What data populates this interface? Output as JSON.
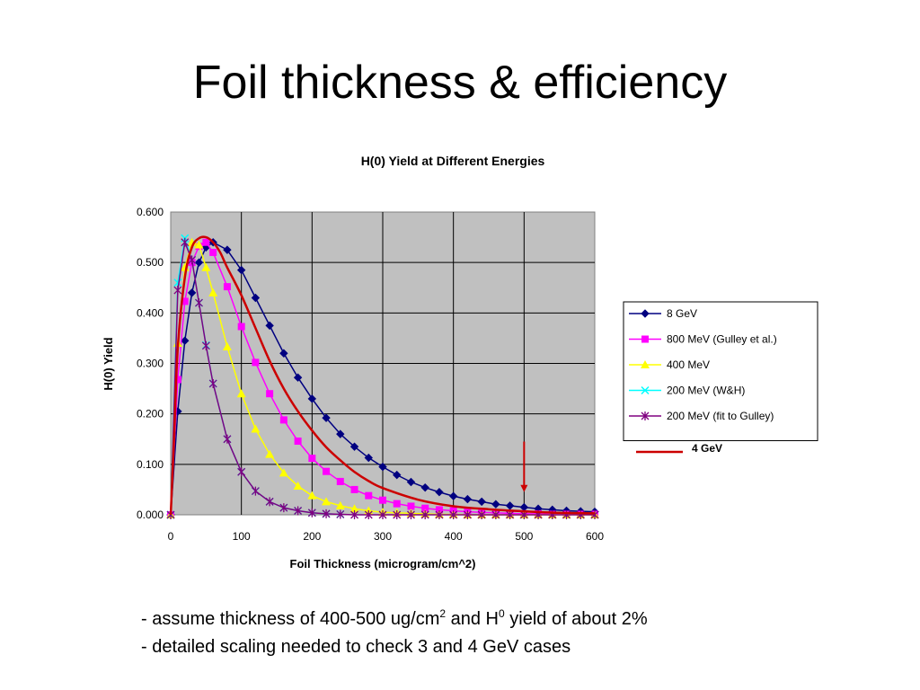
{
  "slide": {
    "title": "Foil thickness & efficiency",
    "bullet1": {
      "prefix": "- assume thickness of 400-500 ug/cm",
      "sup1": "2",
      "middle": " and H",
      "sup2": "0",
      "suffix": " yield of about 2%"
    },
    "bullet2": "- detailed scaling needed to check 3 and 4 GeV cases"
  },
  "chart_data": {
    "type": "line",
    "title": "H(0) Yield at Different Energies",
    "xlabel": "Foil Thickness (microgram/cm^2)",
    "ylabel": "H(0) Yield",
    "xlim": [
      0,
      600
    ],
    "ylim": [
      0,
      0.6
    ],
    "xticks": [
      "0",
      "100",
      "200",
      "300",
      "400",
      "500",
      "600"
    ],
    "yticks": [
      "0.000",
      "0.100",
      "0.200",
      "0.300",
      "0.400",
      "0.500",
      "0.600"
    ],
    "grid": true,
    "plot_background": "#c0c0c0",
    "legend_position": "right",
    "series": [
      {
        "name": "8 GeV",
        "color": "#000080",
        "marker": "diamond",
        "x": [
          0,
          10,
          20,
          30,
          40,
          50,
          60,
          80,
          100,
          120,
          140,
          160,
          180,
          200,
          220,
          240,
          260,
          280,
          300,
          320,
          340,
          360,
          380,
          400,
          420,
          440,
          460,
          480,
          500,
          520,
          540,
          560,
          580,
          600
        ],
        "y": [
          0,
          0.205,
          0.345,
          0.44,
          0.5,
          0.53,
          0.54,
          0.525,
          0.485,
          0.43,
          0.375,
          0.32,
          0.272,
          0.23,
          0.192,
          0.16,
          0.135,
          0.113,
          0.095,
          0.079,
          0.065,
          0.054,
          0.045,
          0.037,
          0.031,
          0.026,
          0.021,
          0.018,
          0.015,
          0.012,
          0.01,
          0.008,
          0.007,
          0.006
        ]
      },
      {
        "name": "800 MeV (Gulley et al.)",
        "color": "#ff00ff",
        "marker": "square",
        "x": [
          0,
          10,
          20,
          30,
          40,
          50,
          60,
          80,
          100,
          120,
          140,
          160,
          180,
          200,
          220,
          240,
          260,
          280,
          300,
          320,
          340,
          360,
          380,
          400,
          420,
          440,
          460,
          480,
          500,
          520,
          540,
          560,
          580,
          600
        ],
        "y": [
          0,
          0.268,
          0.423,
          0.5,
          0.532,
          0.54,
          0.52,
          0.452,
          0.373,
          0.302,
          0.24,
          0.188,
          0.146,
          0.112,
          0.086,
          0.066,
          0.05,
          0.038,
          0.029,
          0.022,
          0.017,
          0.013,
          0.01,
          0.008,
          0.006,
          0.005,
          0.004,
          0.003,
          0.002,
          0.002,
          0.001,
          0.001,
          0.001,
          0.001
        ]
      },
      {
        "name": "400 MeV",
        "color": "#ffff00",
        "marker": "triangle",
        "x": [
          0,
          10,
          20,
          30,
          40,
          50,
          60,
          80,
          100,
          120,
          140,
          160,
          180,
          200,
          220,
          240,
          260,
          280,
          300,
          320,
          340,
          360,
          380,
          400,
          420,
          440,
          460,
          480,
          500,
          520,
          540,
          560,
          580,
          600
        ],
        "y": [
          0,
          0.34,
          0.49,
          0.54,
          0.535,
          0.49,
          0.44,
          0.333,
          0.24,
          0.17,
          0.12,
          0.083,
          0.057,
          0.038,
          0.026,
          0.018,
          0.012,
          0.008,
          0.005,
          0.004,
          0.003,
          0.002,
          0.001,
          0.001,
          0,
          0,
          0,
          0,
          0,
          0,
          0,
          0,
          0,
          0
        ]
      },
      {
        "name": "200 MeV (W&H)",
        "color": "#00ffff",
        "marker": "x",
        "x": [
          0,
          10,
          20,
          30,
          40,
          50,
          60,
          80,
          100,
          120,
          140,
          160,
          180,
          200,
          220,
          240
        ],
        "y": [
          0,
          0.46,
          0.548,
          0.505,
          0.42,
          0.336,
          0.26,
          0.15,
          0.085,
          0.047,
          0.026,
          0.014,
          0.008,
          0.004,
          0.002,
          0.001
        ]
      },
      {
        "name": "200 MeV (fit to Gulley)",
        "color": "#800080",
        "marker": "star",
        "x": [
          0,
          10,
          20,
          30,
          40,
          50,
          60,
          80,
          100,
          120,
          140,
          160,
          180,
          200,
          220,
          240,
          260,
          280,
          300,
          320,
          340,
          360,
          380,
          400,
          420,
          440,
          460,
          480,
          500,
          520,
          540,
          560,
          580,
          600
        ],
        "y": [
          0,
          0.445,
          0.54,
          0.505,
          0.42,
          0.335,
          0.26,
          0.15,
          0.085,
          0.047,
          0.026,
          0.014,
          0.008,
          0.004,
          0.002,
          0.001,
          0,
          0,
          0,
          0,
          0,
          0,
          0,
          0,
          0,
          0,
          0,
          0,
          0,
          0,
          0,
          0,
          0,
          0
        ]
      },
      {
        "name": "4 GeV",
        "color": "#cc0000",
        "marker": "none",
        "smooth": true,
        "x": [
          0,
          5,
          10,
          20,
          30,
          40,
          50,
          60,
          70,
          80,
          100,
          120,
          140,
          160,
          180,
          200,
          220,
          240,
          260,
          280,
          300,
          350,
          400,
          450,
          500,
          550,
          600
        ],
        "y": [
          0,
          0.16,
          0.33,
          0.47,
          0.53,
          0.548,
          0.55,
          0.54,
          0.52,
          0.49,
          0.435,
          0.37,
          0.305,
          0.25,
          0.205,
          0.167,
          0.134,
          0.108,
          0.085,
          0.067,
          0.053,
          0.03,
          0.017,
          0.011,
          0.007,
          0.004,
          0.003
        ]
      }
    ],
    "annotation": {
      "type": "arrow",
      "x": 500,
      "y_from": 0.145,
      "y_to": 0.045,
      "color": "#cc0000"
    }
  }
}
